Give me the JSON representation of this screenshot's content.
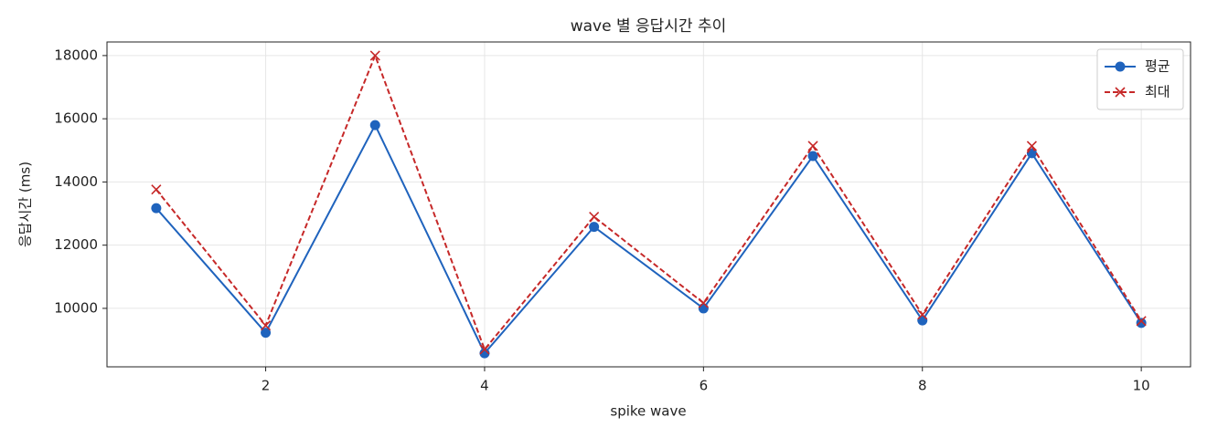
{
  "chart_data": {
    "type": "line",
    "title": "wave 별 응답시간 추이",
    "x_label": "spike wave",
    "y_label": "응답시간 (ms)",
    "x": [
      1,
      2,
      3,
      4,
      5,
      6,
      7,
      8,
      9,
      10
    ],
    "series": [
      {
        "name": "평균",
        "color": "#1f63bd",
        "marker": "circle",
        "dash": false,
        "values": [
          13170,
          9230,
          15800,
          8580,
          12580,
          10000,
          14820,
          9620,
          14910,
          9540
        ]
      },
      {
        "name": "최대",
        "color": "#c62828",
        "marker": "x",
        "dash": true,
        "values": [
          13760,
          9460,
          18000,
          8700,
          12900,
          10170,
          15140,
          9800,
          15140,
          9600
        ]
      }
    ],
    "xlim": [
      0.55,
      10.45
    ],
    "xticks": [
      2,
      4,
      6,
      8,
      10
    ],
    "ylim": [
      8150,
      18430
    ],
    "yticks": [
      10000,
      12000,
      14000,
      16000,
      18000
    ],
    "grid": true,
    "legend": "upper right"
  }
}
